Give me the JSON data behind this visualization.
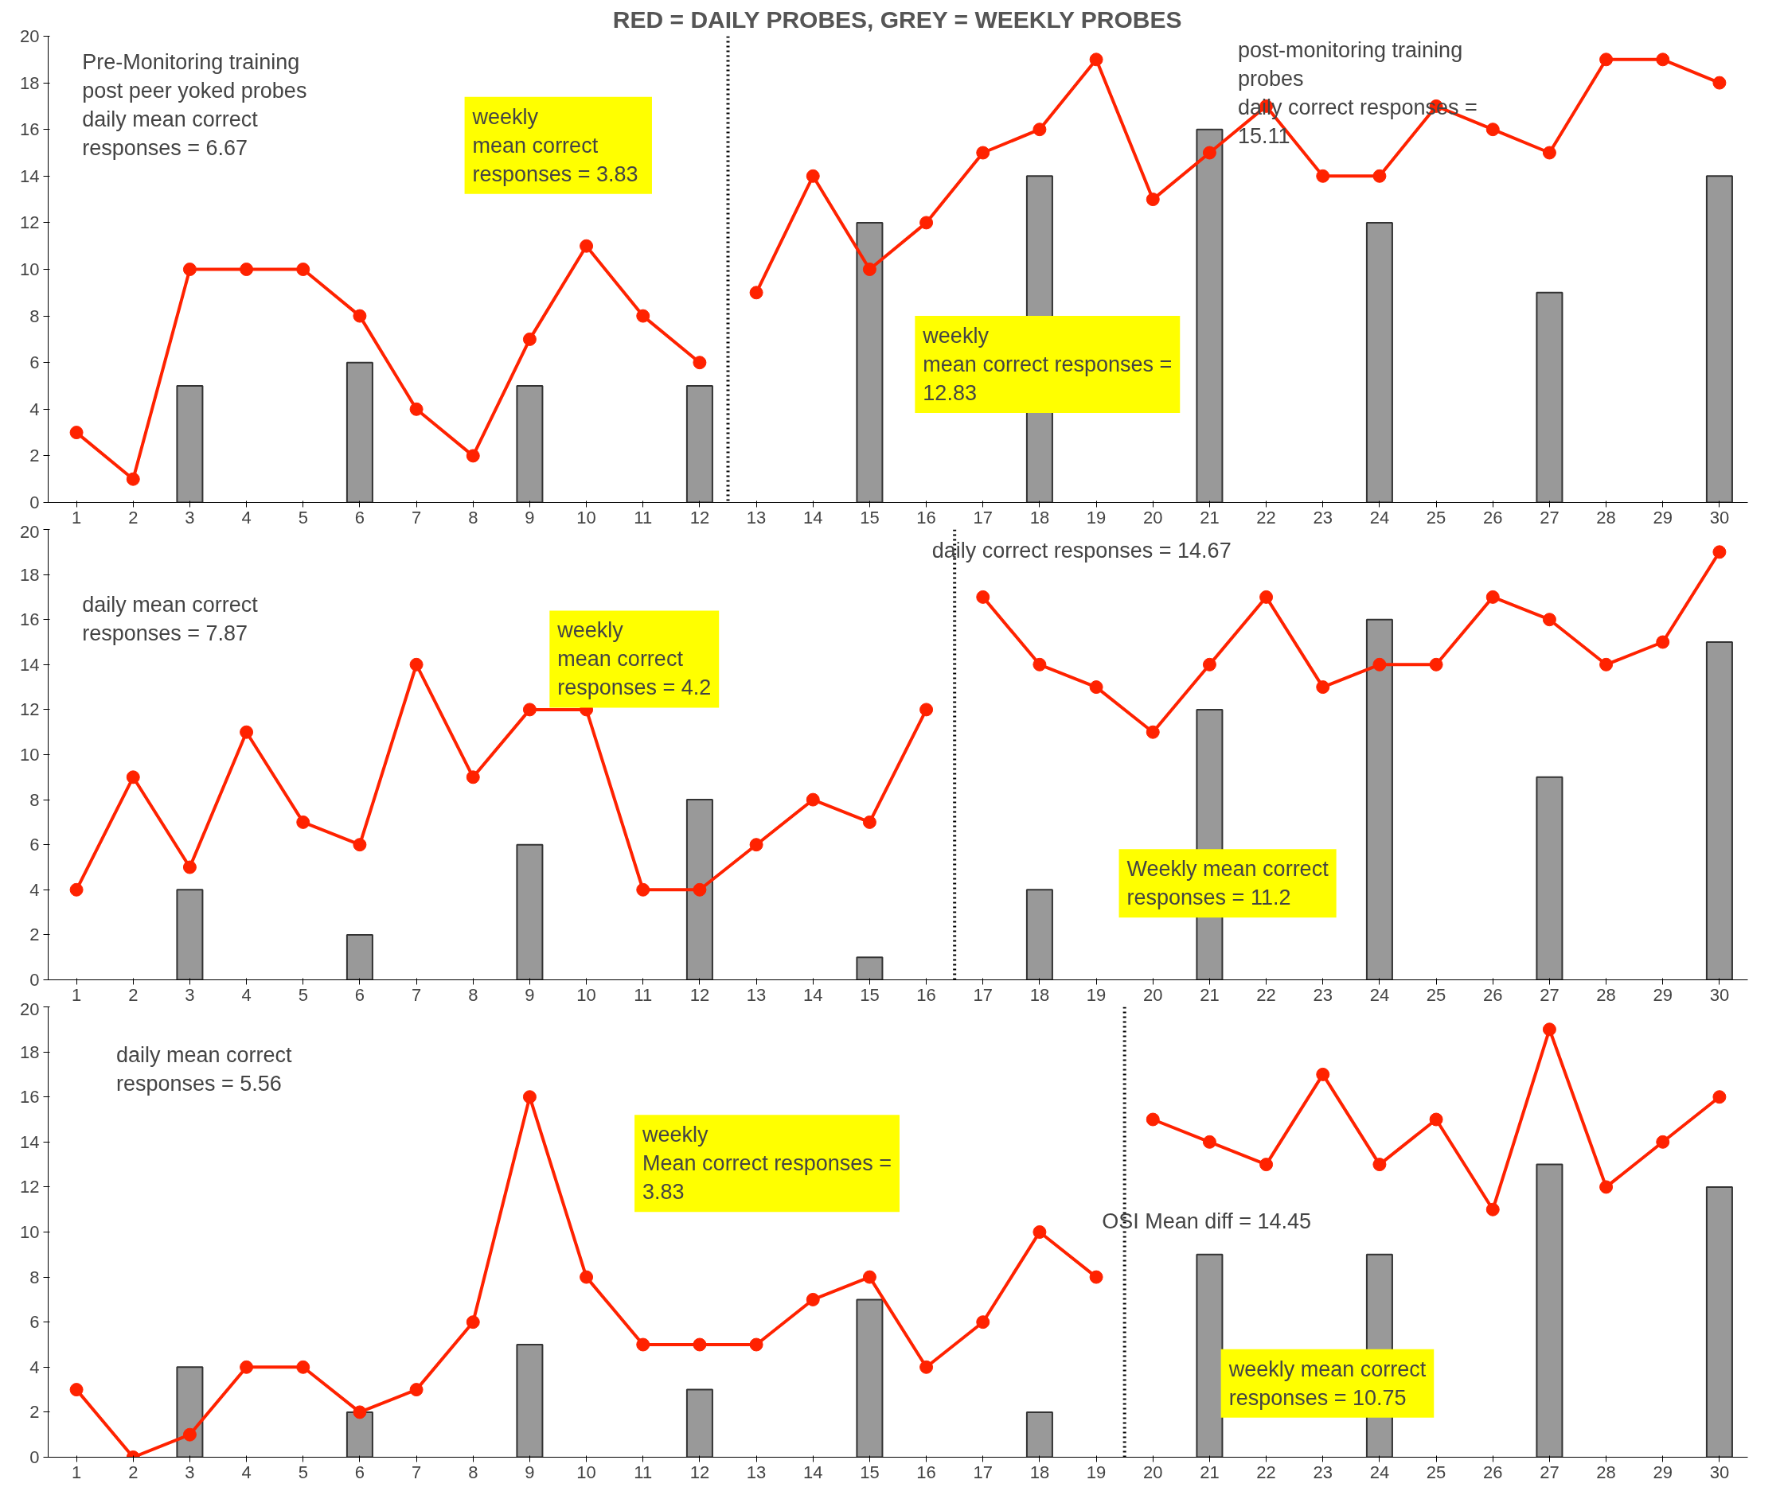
{
  "chart_data": [
    {
      "type": "bar",
      "title": "RED = DAILY PROBES, GREY = WEEKLY PROBES",
      "xlim": [
        0.5,
        30.5
      ],
      "ylim": [
        0,
        20
      ],
      "xticks": [
        1,
        2,
        3,
        4,
        5,
        6,
        7,
        8,
        9,
        10,
        11,
        12,
        13,
        14,
        15,
        16,
        17,
        18,
        19,
        20,
        21,
        22,
        23,
        24,
        25,
        26,
        27,
        28,
        29,
        30
      ],
      "yticks": [
        0,
        2,
        4,
        6,
        8,
        10,
        12,
        14,
        16,
        18,
        20
      ],
      "grid": false,
      "marker": "circle",
      "line_style": "solid",
      "series": [
        {
          "color": "#999999",
          "x": [
            3,
            6,
            9,
            12,
            15,
            18,
            21,
            24,
            27,
            30
          ],
          "values": [
            5,
            6,
            5,
            5,
            12,
            14,
            16,
            12,
            9,
            14
          ]
        },
        {
          "type": "line",
          "color": "#ff2200",
          "x": [
            1,
            2,
            3,
            4,
            5,
            6,
            7,
            8,
            9,
            10,
            11,
            12
          ],
          "values": [
            3,
            1,
            10,
            10,
            10,
            8,
            4,
            2,
            7,
            11,
            8,
            6
          ]
        },
        {
          "type": "line",
          "color": "#ff2200",
          "x": [
            13,
            14,
            15,
            16,
            17,
            18,
            19,
            20,
            21,
            22,
            23,
            24,
            25,
            26,
            27,
            28,
            29,
            30
          ],
          "values": [
            9,
            14,
            10,
            12,
            15,
            16,
            19,
            13,
            15,
            17,
            14,
            14,
            17,
            16,
            15,
            19,
            19,
            18
          ]
        }
      ],
      "ref_lines": [
        {
          "axis": "x",
          "value": 12.5,
          "line_style": "dotted",
          "color": "#000000"
        }
      ],
      "annotations": [
        "Pre-Monitoring training\npost peer yoked probes\ndaily mean correct\nresponses = 6.67",
        "weekly\nmean correct\nresponses  = 3.83",
        "post-monitoring training\nprobes\ndaily correct responses =\n15.11",
        "weekly\nmean correct responses =\n12.83"
      ]
    },
    {
      "type": "bar",
      "xlim": [
        0.5,
        30.5
      ],
      "ylim": [
        0,
        20
      ],
      "xticks": [
        1,
        2,
        3,
        4,
        5,
        6,
        7,
        8,
        9,
        10,
        11,
        12,
        13,
        14,
        15,
        16,
        17,
        18,
        19,
        20,
        21,
        22,
        23,
        24,
        25,
        26,
        27,
        28,
        29,
        30
      ],
      "yticks": [
        0,
        2,
        4,
        6,
        8,
        10,
        12,
        14,
        16,
        18,
        20
      ],
      "grid": false,
      "marker": "circle",
      "line_style": "solid",
      "series": [
        {
          "color": "#999999",
          "x": [
            3,
            6,
            9,
            12,
            15,
            18,
            21,
            24,
            27,
            30
          ],
          "values": [
            4,
            2,
            6,
            8,
            1,
            4,
            12,
            16,
            9,
            15
          ]
        },
        {
          "type": "line",
          "color": "#ff2200",
          "x": [
            1,
            2,
            3,
            4,
            5,
            6,
            7,
            8,
            9,
            10,
            11,
            12,
            13,
            14,
            15,
            16
          ],
          "values": [
            4,
            9,
            5,
            11,
            7,
            6,
            14,
            9,
            12,
            12,
            4,
            4,
            6,
            8,
            7,
            12
          ]
        },
        {
          "type": "line",
          "color": "#ff2200",
          "x": [
            17,
            18,
            19,
            20,
            21,
            22,
            23,
            24,
            25,
            26,
            27,
            28,
            29,
            30
          ],
          "values": [
            17,
            14,
            13,
            11,
            14,
            17,
            13,
            14,
            14,
            17,
            16,
            14,
            15,
            19
          ]
        }
      ],
      "ref_lines": [
        {
          "axis": "x",
          "value": 16.5,
          "line_style": "dotted",
          "color": "#000000"
        }
      ],
      "annotations": [
        "daily mean correct\nresponses = 7.87",
        "weekly\nmean correct\nresponses = 4.2",
        "daily correct responses = 14.67",
        "Weekly mean correct\nresponses = 11.2"
      ]
    },
    {
      "type": "bar",
      "xlim": [
        0.5,
        30.5
      ],
      "ylim": [
        0,
        20
      ],
      "xticks": [
        1,
        2,
        3,
        4,
        5,
        6,
        7,
        8,
        9,
        10,
        11,
        12,
        13,
        14,
        15,
        16,
        17,
        18,
        19,
        20,
        21,
        22,
        23,
        24,
        25,
        26,
        27,
        28,
        29,
        30
      ],
      "yticks": [
        0,
        2,
        4,
        6,
        8,
        10,
        12,
        14,
        16,
        18,
        20
      ],
      "grid": false,
      "marker": "circle",
      "line_style": "solid",
      "series": [
        {
          "color": "#999999",
          "x": [
            3,
            6,
            9,
            12,
            15,
            18,
            21,
            24,
            27,
            30
          ],
          "values": [
            4,
            2,
            5,
            3,
            7,
            2,
            9,
            9,
            13,
            12
          ]
        },
        {
          "type": "line",
          "color": "#ff2200",
          "x": [
            1,
            2,
            3,
            4,
            5,
            6,
            7,
            8,
            9,
            10,
            11,
            12,
            13,
            14,
            15,
            16,
            17,
            18,
            19
          ],
          "values": [
            3,
            0,
            1,
            4,
            4,
            2,
            3,
            6,
            16,
            8,
            5,
            5,
            5,
            7,
            8,
            4,
            6,
            10,
            8
          ]
        },
        {
          "type": "line",
          "color": "#ff2200",
          "x": [
            20,
            21,
            22,
            23,
            24,
            25,
            26,
            27,
            28,
            29,
            30
          ],
          "values": [
            15,
            14,
            13,
            17,
            13,
            15,
            11,
            19,
            12,
            14,
            16
          ]
        }
      ],
      "ref_lines": [
        {
          "axis": "x",
          "value": 19.5,
          "line_style": "dotted",
          "color": "#000000"
        }
      ],
      "annotations": [
        "daily mean correct\nresponses = 5.56",
        "weekly\nMean correct responses =\n3.83",
        "OSI Mean diff = 14.45",
        "weekly mean correct\nresponses = 10.75"
      ]
    }
  ]
}
